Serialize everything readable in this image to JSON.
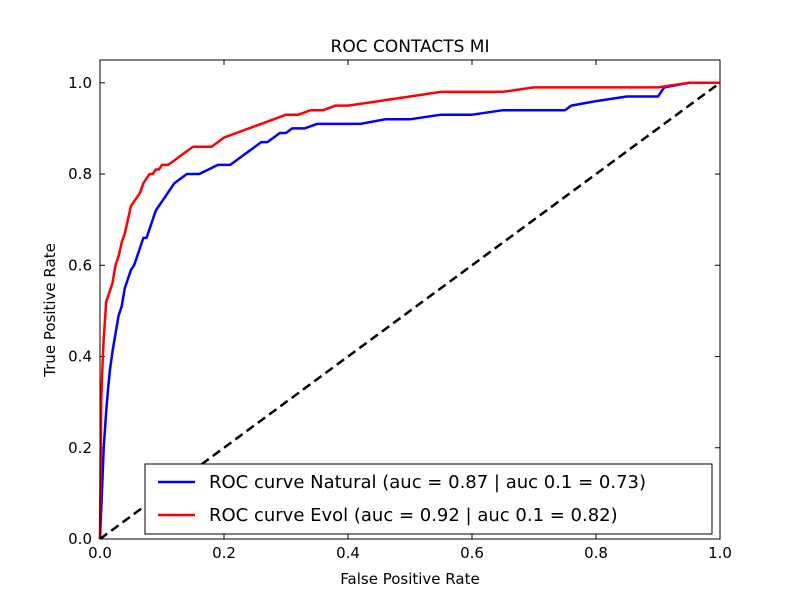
{
  "chart_data": {
    "type": "line",
    "title": "ROC CONTACTS MI",
    "xlabel": "False Positive Rate",
    "ylabel": "True Positive Rate",
    "xlim": [
      0.0,
      1.0
    ],
    "ylim": [
      0.0,
      1.05
    ],
    "xticks": [
      "0.0",
      "0.2",
      "0.4",
      "0.6",
      "0.8",
      "1.0"
    ],
    "yticks": [
      "0.0",
      "0.2",
      "0.4",
      "0.6",
      "0.8",
      "1.0"
    ],
    "grid": false,
    "legend_position": "lower-right",
    "series": [
      {
        "name": "ROC curve  Natural (auc = 0.87 | auc 0.1 = 0.73)",
        "color": "#0000ff",
        "x": [
          0.0,
          0.003,
          0.006,
          0.01,
          0.013,
          0.016,
          0.02,
          0.025,
          0.03,
          0.035,
          0.04,
          0.045,
          0.05,
          0.055,
          0.06,
          0.065,
          0.07,
          0.075,
          0.08,
          0.085,
          0.09,
          0.095,
          0.1,
          0.105,
          0.11,
          0.115,
          0.12,
          0.13,
          0.14,
          0.15,
          0.16,
          0.175,
          0.19,
          0.2,
          0.21,
          0.22,
          0.23,
          0.24,
          0.25,
          0.26,
          0.27,
          0.28,
          0.29,
          0.3,
          0.31,
          0.33,
          0.35,
          0.38,
          0.42,
          0.46,
          0.5,
          0.55,
          0.6,
          0.65,
          0.7,
          0.75,
          0.76,
          0.8,
          0.85,
          0.9,
          0.91,
          0.95,
          1.0
        ],
        "y": [
          0.0,
          0.1,
          0.2,
          0.28,
          0.33,
          0.37,
          0.41,
          0.45,
          0.49,
          0.51,
          0.55,
          0.57,
          0.59,
          0.6,
          0.62,
          0.64,
          0.66,
          0.66,
          0.68,
          0.7,
          0.72,
          0.73,
          0.74,
          0.75,
          0.76,
          0.77,
          0.78,
          0.79,
          0.8,
          0.8,
          0.8,
          0.81,
          0.82,
          0.82,
          0.82,
          0.83,
          0.84,
          0.85,
          0.86,
          0.87,
          0.87,
          0.88,
          0.89,
          0.89,
          0.9,
          0.9,
          0.91,
          0.91,
          0.91,
          0.92,
          0.92,
          0.93,
          0.93,
          0.94,
          0.94,
          0.94,
          0.95,
          0.96,
          0.97,
          0.97,
          0.99,
          1.0,
          1.0
        ]
      },
      {
        "name": "ROC curve  Evol (auc = 0.92 | auc 0.1 = 0.82)",
        "color": "#ff0000",
        "x": [
          0.0,
          0.002,
          0.004,
          0.006,
          0.008,
          0.01,
          0.015,
          0.02,
          0.025,
          0.03,
          0.035,
          0.04,
          0.045,
          0.05,
          0.055,
          0.06,
          0.065,
          0.07,
          0.075,
          0.08,
          0.085,
          0.09,
          0.095,
          0.1,
          0.11,
          0.12,
          0.13,
          0.14,
          0.15,
          0.16,
          0.18,
          0.2,
          0.22,
          0.24,
          0.26,
          0.28,
          0.3,
          0.32,
          0.34,
          0.36,
          0.38,
          0.4,
          0.45,
          0.5,
          0.55,
          0.6,
          0.65,
          0.7,
          0.75,
          0.8,
          0.85,
          0.9,
          0.95,
          1.0
        ],
        "y": [
          0.0,
          0.3,
          0.38,
          0.44,
          0.48,
          0.52,
          0.54,
          0.56,
          0.6,
          0.62,
          0.65,
          0.67,
          0.7,
          0.73,
          0.74,
          0.75,
          0.76,
          0.78,
          0.79,
          0.8,
          0.8,
          0.81,
          0.81,
          0.82,
          0.82,
          0.83,
          0.84,
          0.85,
          0.86,
          0.86,
          0.86,
          0.88,
          0.89,
          0.9,
          0.91,
          0.92,
          0.93,
          0.93,
          0.94,
          0.94,
          0.95,
          0.95,
          0.96,
          0.97,
          0.98,
          0.98,
          0.98,
          0.99,
          0.99,
          0.99,
          0.99,
          0.99,
          1.0,
          1.0
        ]
      },
      {
        "name": "",
        "color": "#000000",
        "style": "dashed",
        "x": [
          0.0,
          1.0
        ],
        "y": [
          0.0,
          1.0
        ]
      }
    ]
  }
}
